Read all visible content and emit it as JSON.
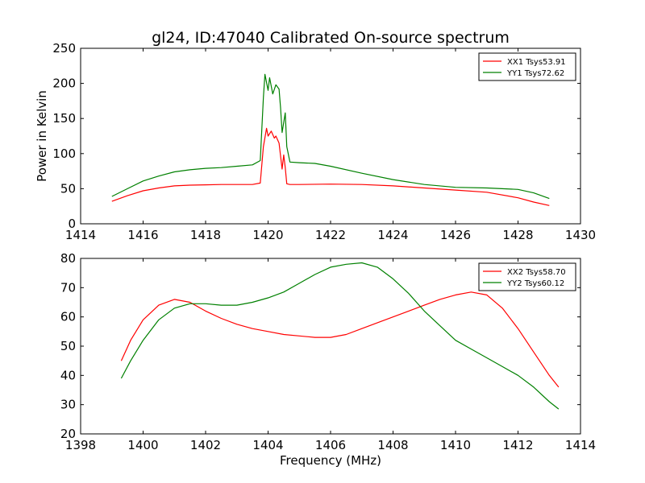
{
  "figure": {
    "title": "gl24, ID:47040 Calibrated On-source spectrum",
    "xlabel": "Frequency (MHz)"
  },
  "chart_data": [
    {
      "type": "line",
      "title": "gl24, ID:47040 Calibrated On-source spectrum",
      "xlabel": "",
      "ylabel": "Power in Kelvin",
      "xlim": [
        1414,
        1430
      ],
      "ylim": [
        0,
        250
      ],
      "xticks": [
        1414,
        1416,
        1418,
        1420,
        1422,
        1424,
        1426,
        1428,
        1430
      ],
      "yticks": [
        0,
        50,
        100,
        150,
        200,
        250
      ],
      "grid": false,
      "legend_position": "top-right",
      "series": [
        {
          "name": "XX1 Tsys53.91",
          "color": "#ff0000",
          "x": [
            1415.0,
            1415.5,
            1416.0,
            1416.5,
            1417.0,
            1417.5,
            1418.0,
            1418.5,
            1419.0,
            1419.5,
            1419.75,
            1419.85,
            1419.95,
            1420.0,
            1420.1,
            1420.2,
            1420.25,
            1420.35,
            1420.45,
            1420.5,
            1420.55,
            1420.6,
            1420.7,
            1421.0,
            1422.0,
            1423.0,
            1424.0,
            1425.0,
            1426.0,
            1427.0,
            1428.0,
            1428.5,
            1429.0
          ],
          "y": [
            32,
            40,
            47,
            51,
            54,
            55,
            55.5,
            56,
            56,
            56,
            58,
            110,
            136,
            125,
            132,
            122,
            125,
            115,
            78,
            98,
            80,
            57,
            56,
            56,
            56.5,
            56,
            54,
            51,
            48,
            45,
            37,
            31,
            26
          ]
        },
        {
          "name": "YY1 Tsys72.62",
          "color": "#008000",
          "x": [
            1415.0,
            1415.5,
            1416.0,
            1416.5,
            1417.0,
            1417.5,
            1418.0,
            1418.5,
            1419.0,
            1419.5,
            1419.75,
            1419.85,
            1419.9,
            1420.0,
            1420.05,
            1420.15,
            1420.25,
            1420.35,
            1420.4,
            1420.45,
            1420.55,
            1420.6,
            1420.7,
            1421.0,
            1421.5,
            1422.0,
            1423.0,
            1424.0,
            1425.0,
            1426.0,
            1427.0,
            1428.0,
            1428.5,
            1429.0
          ],
          "y": [
            39,
            50,
            61,
            68,
            74,
            77,
            79,
            80,
            82,
            84,
            90,
            180,
            213,
            190,
            208,
            185,
            198,
            192,
            165,
            130,
            158,
            110,
            88,
            87,
            86,
            82,
            72,
            63,
            56,
            52,
            51,
            49,
            44,
            36
          ]
        }
      ]
    },
    {
      "type": "line",
      "title": "",
      "xlabel": "Frequency (MHz)",
      "ylabel": "",
      "xlim": [
        1398,
        1414
      ],
      "ylim": [
        20,
        80
      ],
      "xticks": [
        1398,
        1400,
        1402,
        1404,
        1406,
        1408,
        1410,
        1412,
        1414
      ],
      "yticks": [
        20,
        30,
        40,
        50,
        60,
        70,
        80
      ],
      "grid": false,
      "legend_position": "top-right",
      "series": [
        {
          "name": "XX2 Tsys58.70",
          "color": "#ff0000",
          "x": [
            1399.3,
            1399.6,
            1400.0,
            1400.5,
            1401.0,
            1401.5,
            1402.0,
            1402.5,
            1403.0,
            1403.5,
            1404.0,
            1404.5,
            1405.0,
            1405.5,
            1406.0,
            1406.5,
            1407.0,
            1407.5,
            1408.0,
            1408.5,
            1409.0,
            1409.5,
            1410.0,
            1410.5,
            1411.0,
            1411.5,
            1412.0,
            1412.5,
            1413.0,
            1413.3
          ],
          "y": [
            45,
            52,
            59,
            64,
            66,
            65,
            62,
            59.5,
            57.5,
            56,
            55,
            54,
            53.5,
            53,
            53,
            54,
            56,
            58,
            60,
            62,
            64,
            66,
            67.5,
            68.5,
            67.5,
            63,
            56,
            48,
            40,
            36
          ]
        },
        {
          "name": "YY2 Tsys60.12",
          "color": "#008000",
          "x": [
            1399.3,
            1399.6,
            1400.0,
            1400.5,
            1401.0,
            1401.5,
            1402.0,
            1402.5,
            1403.0,
            1403.5,
            1404.0,
            1404.5,
            1405.0,
            1405.5,
            1406.0,
            1406.5,
            1407.0,
            1407.5,
            1408.0,
            1408.5,
            1409.0,
            1409.5,
            1410.0,
            1410.5,
            1411.0,
            1411.5,
            1412.0,
            1412.5,
            1413.0,
            1413.3
          ],
          "y": [
            39,
            45,
            52,
            59,
            63,
            64.5,
            64.5,
            64,
            64,
            65,
            66.5,
            68.5,
            71.5,
            74.5,
            77,
            78,
            78.5,
            77,
            73,
            68,
            62,
            57,
            52,
            49,
            46,
            43,
            40,
            36,
            31,
            28.5
          ]
        }
      ]
    }
  ]
}
